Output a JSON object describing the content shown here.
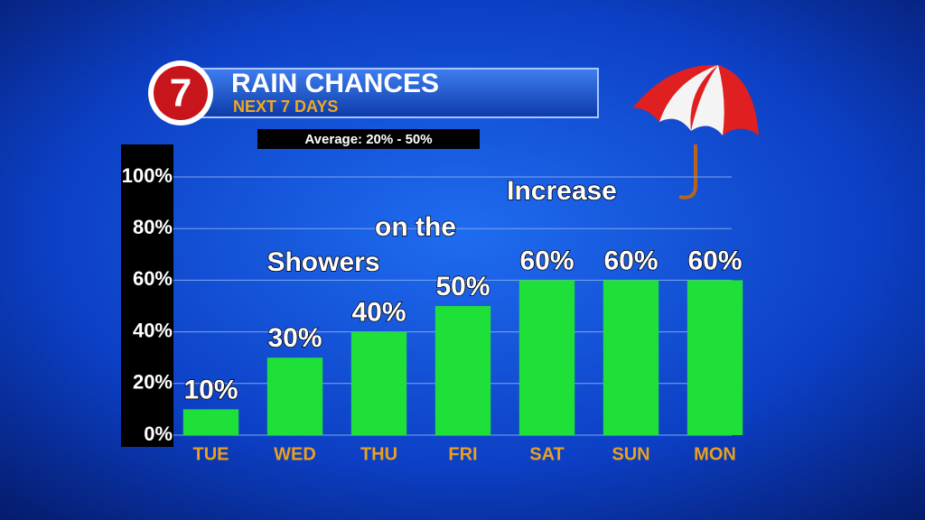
{
  "chart_data": {
    "type": "bar",
    "title": "RAIN CHANCES",
    "subtitle": "NEXT 7 DAYS",
    "logo": "7",
    "note": "Average: 20% - 50%",
    "annotations": [
      "Showers",
      "on the",
      "Increase"
    ],
    "categories": [
      "TUE",
      "WED",
      "THU",
      "FRI",
      "SAT",
      "SUN",
      "MON"
    ],
    "values": [
      10,
      30,
      40,
      50,
      60,
      60,
      60
    ],
    "value_labels": [
      "10%",
      "30%",
      "40%",
      "50%",
      "60%",
      "60%",
      "60%"
    ],
    "color": "#1fe038",
    "ylim": [
      0,
      100
    ],
    "yticks": [
      {
        "value": 0,
        "label": "0%"
      },
      {
        "value": 20,
        "label": "20%"
      },
      {
        "value": 40,
        "label": "40%"
      },
      {
        "value": 60,
        "label": "60%"
      },
      {
        "value": 80,
        "label": "80%"
      },
      {
        "value": 100,
        "label": "100%"
      }
    ],
    "grid": true
  }
}
